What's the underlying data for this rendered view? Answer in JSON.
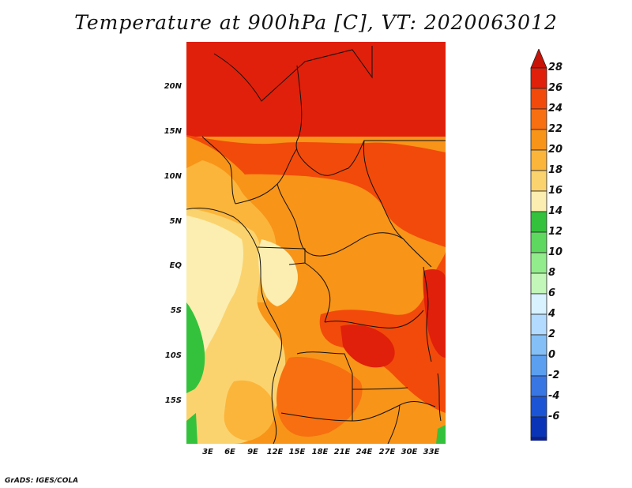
{
  "title": "Temperature at 900hPa [C], VT: 2020063012",
  "credit": "GrADS: IGES/COLA",
  "lat_ticks": [
    "20N",
    "15N",
    "10N",
    "5N",
    "EQ",
    "5S",
    "10S",
    "15S"
  ],
  "lon_ticks": [
    "3E",
    "6E",
    "9E",
    "12E",
    "15E",
    "18E",
    "21E",
    "24E",
    "27E",
    "30E",
    "33E"
  ],
  "colorbar": {
    "labels": [
      "28",
      "26",
      "24",
      "22",
      "20",
      "18",
      "16",
      "14",
      "12",
      "10",
      "8",
      "6",
      "4",
      "2",
      "0",
      "-2",
      "-4",
      "-6"
    ],
    "colors": [
      "#e0200a",
      "#f24a0a",
      "#f76f10",
      "#f89418",
      "#fbb53a",
      "#fbd36e",
      "#fbeeb0",
      "#34c23c",
      "#5fd860",
      "#93ec8c",
      "#c3f7b9",
      "#d8f2ff",
      "#b2dbff",
      "#84bff7",
      "#5b9ff0",
      "#3876e4",
      "#1c54d6",
      "#0a34b8",
      "#0b1f8c",
      "#12105e"
    ],
    "top_arrow_color": "#c81408",
    "bottom_arrow_color": "#d8d8f5"
  }
}
